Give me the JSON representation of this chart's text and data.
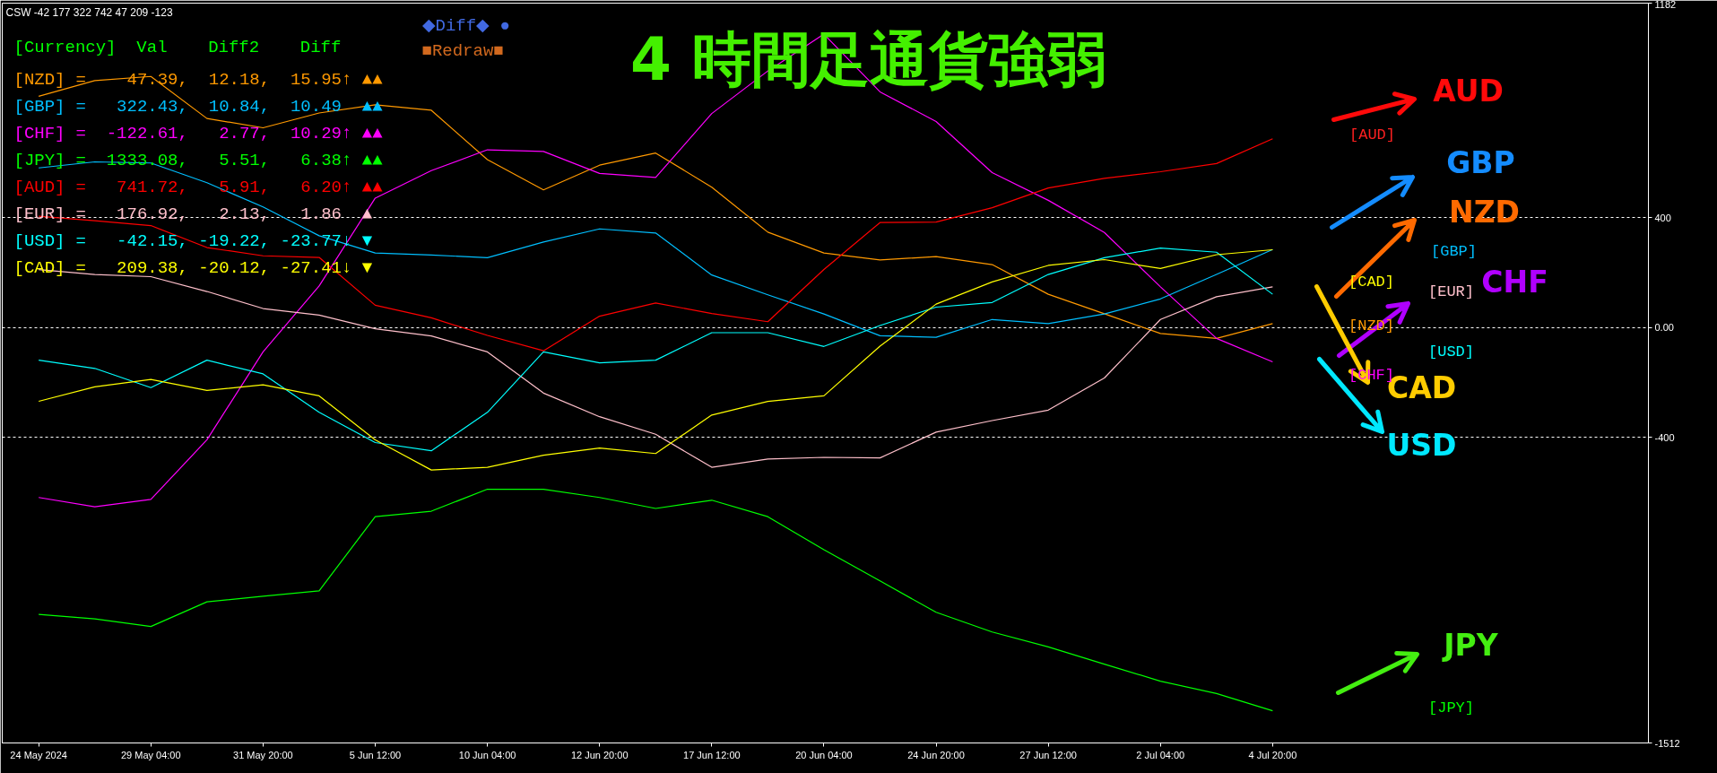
{
  "chart_data": {
    "type": "line",
    "title": "4 時間足通貨強弱",
    "categories": [
      "24 May 2024",
      null,
      "29 May 04:00",
      null,
      "31 May 20:00",
      null,
      "5 Jun 12:00",
      null,
      "10 Jun 04:00",
      null,
      "12 Jun 20:00",
      null,
      "17 Jun 12:00",
      null,
      "20 Jun 04:00",
      null,
      "24 Jun 20:00",
      null,
      "27 Jun 12:00",
      null,
      "2 Jul 04:00",
      null,
      "4 Jul 20:00"
    ],
    "ylim": [
      -1512,
      1182
    ],
    "yticks": [
      1182,
      400,
      {
        "value": 0,
        "label": "0.00"
      },
      -400,
      -1512
    ],
    "grid": "y",
    "legend": "top left",
    "series": [
      {
        "name": "[NZD]",
        "color": "#ff9900",
        "values": [
          843,
          900,
          915,
          762,
          728,
          782,
          812,
          792,
          612,
          502,
          592,
          636,
          512,
          348,
          272,
          247,
          259,
          230,
          122,
          51,
          -21,
          -39,
          15
        ]
      },
      {
        "name": "[GBP]",
        "color": "#00bfff",
        "values": [
          582,
          604,
          600,
          528,
          440,
          335,
          272,
          265,
          255,
          312,
          360,
          345,
          192,
          120,
          50,
          -29,
          -35,
          30,
          15,
          50,
          105,
          194,
          285
        ]
      },
      {
        "name": "[CHF]",
        "color": "#ff00ff",
        "values": [
          -618,
          -652,
          -625,
          -408,
          -88,
          152,
          472,
          572,
          648,
          642,
          562,
          547,
          780,
          935,
          1069,
          859,
          751,
          565,
          464,
          347,
          149,
          -39,
          -124
        ]
      },
      {
        "name": "[JPY]",
        "color": "#00ff00",
        "values": [
          -1044,
          -1060,
          -1088,
          -998,
          -978,
          -958,
          -688,
          -668,
          -588,
          -588,
          -618,
          -658,
          -628,
          -688,
          -808,
          -922,
          -1036,
          -1108,
          -1162,
          -1225,
          -1287,
          -1332,
          -1395
        ]
      },
      {
        "name": "[AUD]",
        "color": "#ff0000",
        "values": [
          406,
          390,
          372,
          292,
          262,
          256,
          82,
          36,
          -28,
          -84,
          42,
          90,
          52,
          22,
          212,
          383,
          385,
          437,
          509,
          544,
          568,
          598,
          688
        ]
      },
      {
        "name": "[EUR]",
        "color": "#ffc0cb",
        "values": [
          212,
          194,
          186,
          132,
          70,
          46,
          -4,
          -30,
          -88,
          -238,
          -324,
          -388,
          -508,
          -478,
          -472,
          -474,
          -380,
          -338,
          -300,
          -183,
          30,
          113,
          149
        ]
      },
      {
        "name": "[USD]",
        "color": "#00ffff",
        "values": [
          -118,
          -148,
          -218,
          -118,
          -168,
          -308,
          -418,
          -448,
          -308,
          -88,
          -128,
          -118,
          -18,
          -18,
          -68,
          8,
          75,
          92,
          194,
          255,
          290,
          275,
          122
        ]
      },
      {
        "name": "[CAD]",
        "color": "#ffff00",
        "values": [
          -268,
          -215,
          -188,
          -228,
          -208,
          -248,
          -408,
          -518,
          -508,
          -464,
          -438,
          -458,
          -318,
          -268,
          -248,
          -67,
          86,
          167,
          227,
          248,
          216,
          266,
          284
        ]
      }
    ],
    "annotations": [
      "CSW -42 177 322 742 47 209 -123",
      "[Currency]  Val    Diff2    Diff",
      "=    47.39,  12.18,  15.95↑ ▲▲",
      "=   322.43,  10.84,  10.49  ▲▲",
      "=  -122.61,   2.77,  10.29↑ ▲▲",
      "=  1333.08,   5.51,   6.38↑ ▲▲",
      "=   741.72,   5.91,   6.20↑ ▲▲",
      "=   176.92,   2.13,   1.86  ▲",
      "=   -42.15, -19.22, -23.77↓ ▼",
      "=   209.38, -20.12, -27.41↓ ▼",
      "◆Diff◆ ●",
      "■Redraw■",
      "AUD",
      "GBP",
      "NZD",
      "CHF",
      "CAD",
      "USD",
      "JPY",
      "[AUD]",
      "[GBP]",
      "[CAD]",
      "[EUR]",
      "[NZD]",
      "[USD]",
      "[CHF]",
      "[JPY]"
    ]
  }
}
